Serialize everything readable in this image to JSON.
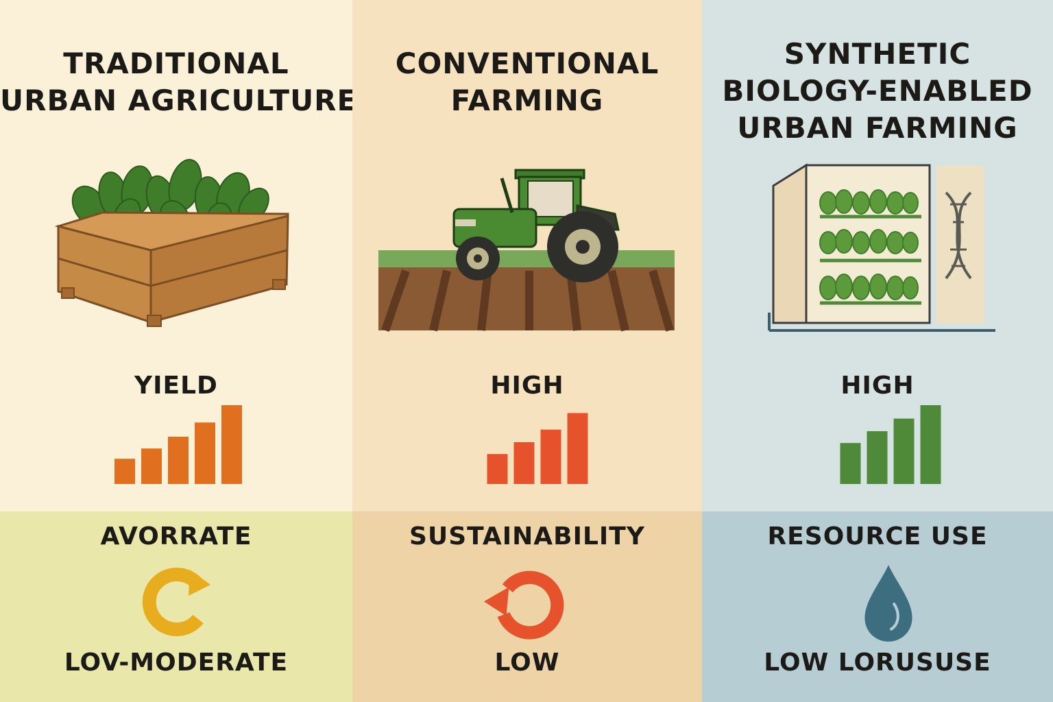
{
  "columns": [
    {
      "title_lines": [
        "TRADITIONAL",
        "URBAN AGRICULTURE"
      ],
      "metric_label": "YIELD",
      "bar_levels": [
        0.32,
        0.45,
        0.6,
        0.78,
        1.0
      ],
      "bar_color": "#e06f1f",
      "bottom_label": "AVORRATE",
      "rating": "LOV-MODERATE",
      "icon": "cycle-arrow-icon",
      "icon_color": "#e8ad1e"
    },
    {
      "title_lines": [
        "CONVENTIONAL",
        "FARMING"
      ],
      "metric_label": "HIGH",
      "bar_levels": [
        0.38,
        0.53,
        0.69,
        0.9
      ],
      "bar_color": "#e6522c",
      "bottom_label": "SUSTAINABILITY",
      "rating": "LOW",
      "icon": "refresh-arrow-icon",
      "icon_color": "#e6522c"
    },
    {
      "title_lines": [
        "SYNTHETIC",
        "BIOLOGY-ENABLED",
        "URBAN FARMING"
      ],
      "metric_label": "HIGH",
      "bar_levels": [
        0.52,
        0.67,
        0.83,
        1.0
      ],
      "bar_color": "#4f8a3a",
      "bottom_label": "RESOURCE USE",
      "rating": "LOW LORUSUSE",
      "icon": "water-drop-icon",
      "icon_color": "#3d6e80"
    }
  ]
}
